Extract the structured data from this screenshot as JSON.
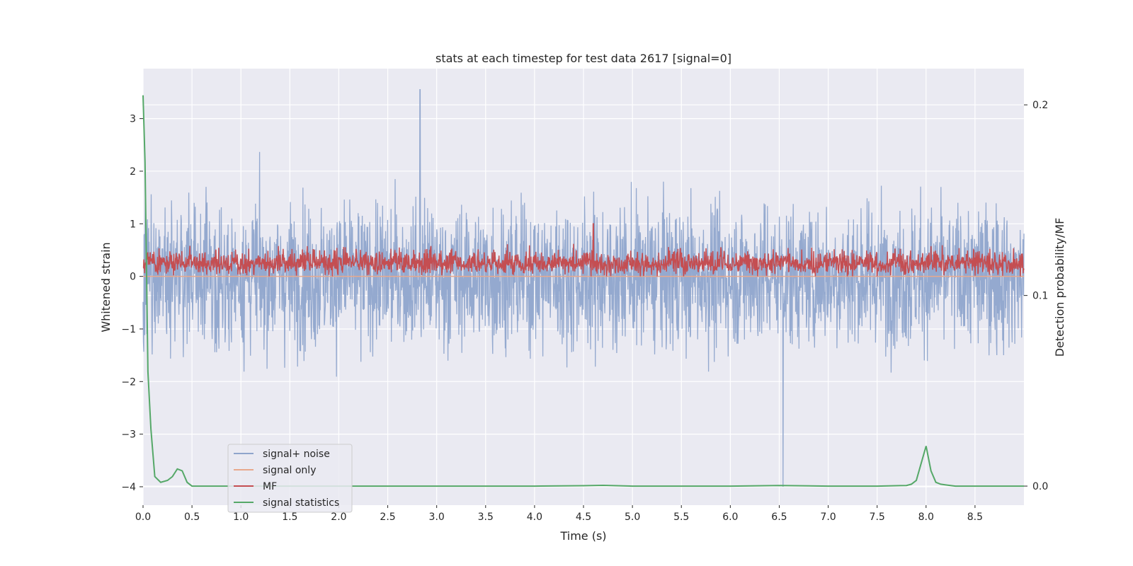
{
  "chart_data": {
    "type": "line",
    "title": "stats at each timestep for test data 2617 [signal=0]",
    "xlabel": "Time (s)",
    "ylabel": "Whitened strain",
    "y2label": "Detection probability/MF",
    "xlim": [
      0,
      9
    ],
    "ylim": [
      -4.35,
      3.95
    ],
    "y2lim": [
      -0.01,
      0.219
    ],
    "xticks": [
      "0.0",
      "0.5",
      "1.0",
      "1.5",
      "2.0",
      "2.5",
      "3.0",
      "3.5",
      "4.0",
      "4.5",
      "5.0",
      "5.5",
      "6.0",
      "6.5",
      "7.0",
      "7.5",
      "8.0",
      "8.5"
    ],
    "yticks": [
      "3",
      "2",
      "1",
      "0",
      "−1",
      "−2",
      "−3",
      "−4"
    ],
    "y2ticks": [
      "0.2",
      "0.1",
      "0.0"
    ],
    "legend_position": "lower-left",
    "series": [
      {
        "name": "signal+ noise",
        "color": "#8fa5cc",
        "axis": "left",
        "description": "dense noise band, roughly +/-2.5, peaks to 3.55 near t=2.83 and -4.0 near t=6.54"
      },
      {
        "name": "signal only",
        "color": "#e8a98c",
        "axis": "left",
        "description": "flat at 0.0"
      },
      {
        "name": "MF",
        "color": "#c44e52",
        "axis": "left",
        "description": "band between 0 and 0.7, peaks ~1.0 near t=4.6"
      },
      {
        "name": "signal statistics",
        "color": "#55a868",
        "axis": "right",
        "x": [
          0.0,
          0.02,
          0.05,
          0.08,
          0.12,
          0.18,
          0.25,
          0.3,
          0.35,
          0.4,
          0.45,
          0.5,
          0.6,
          1.0,
          2.0,
          3.0,
          4.0,
          4.5,
          4.7,
          5.0,
          6.0,
          6.5,
          7.0,
          7.5,
          7.8,
          7.85,
          7.9,
          7.95,
          8.0,
          8.05,
          8.1,
          8.15,
          8.2,
          8.3,
          8.4,
          9.0
        ],
        "y": [
          0.205,
          0.17,
          0.06,
          0.03,
          0.005,
          0.002,
          0.003,
          0.005,
          0.009,
          0.008,
          0.002,
          0.0,
          0.0,
          0.0,
          0.0,
          0.0,
          0.0,
          0.0002,
          0.0004,
          0.0,
          0.0,
          0.0003,
          0.0,
          0.0,
          0.0003,
          0.001,
          0.003,
          0.012,
          0.021,
          0.008,
          0.002,
          0.001,
          0.0006,
          0.0,
          0.0,
          0.0
        ]
      }
    ]
  }
}
